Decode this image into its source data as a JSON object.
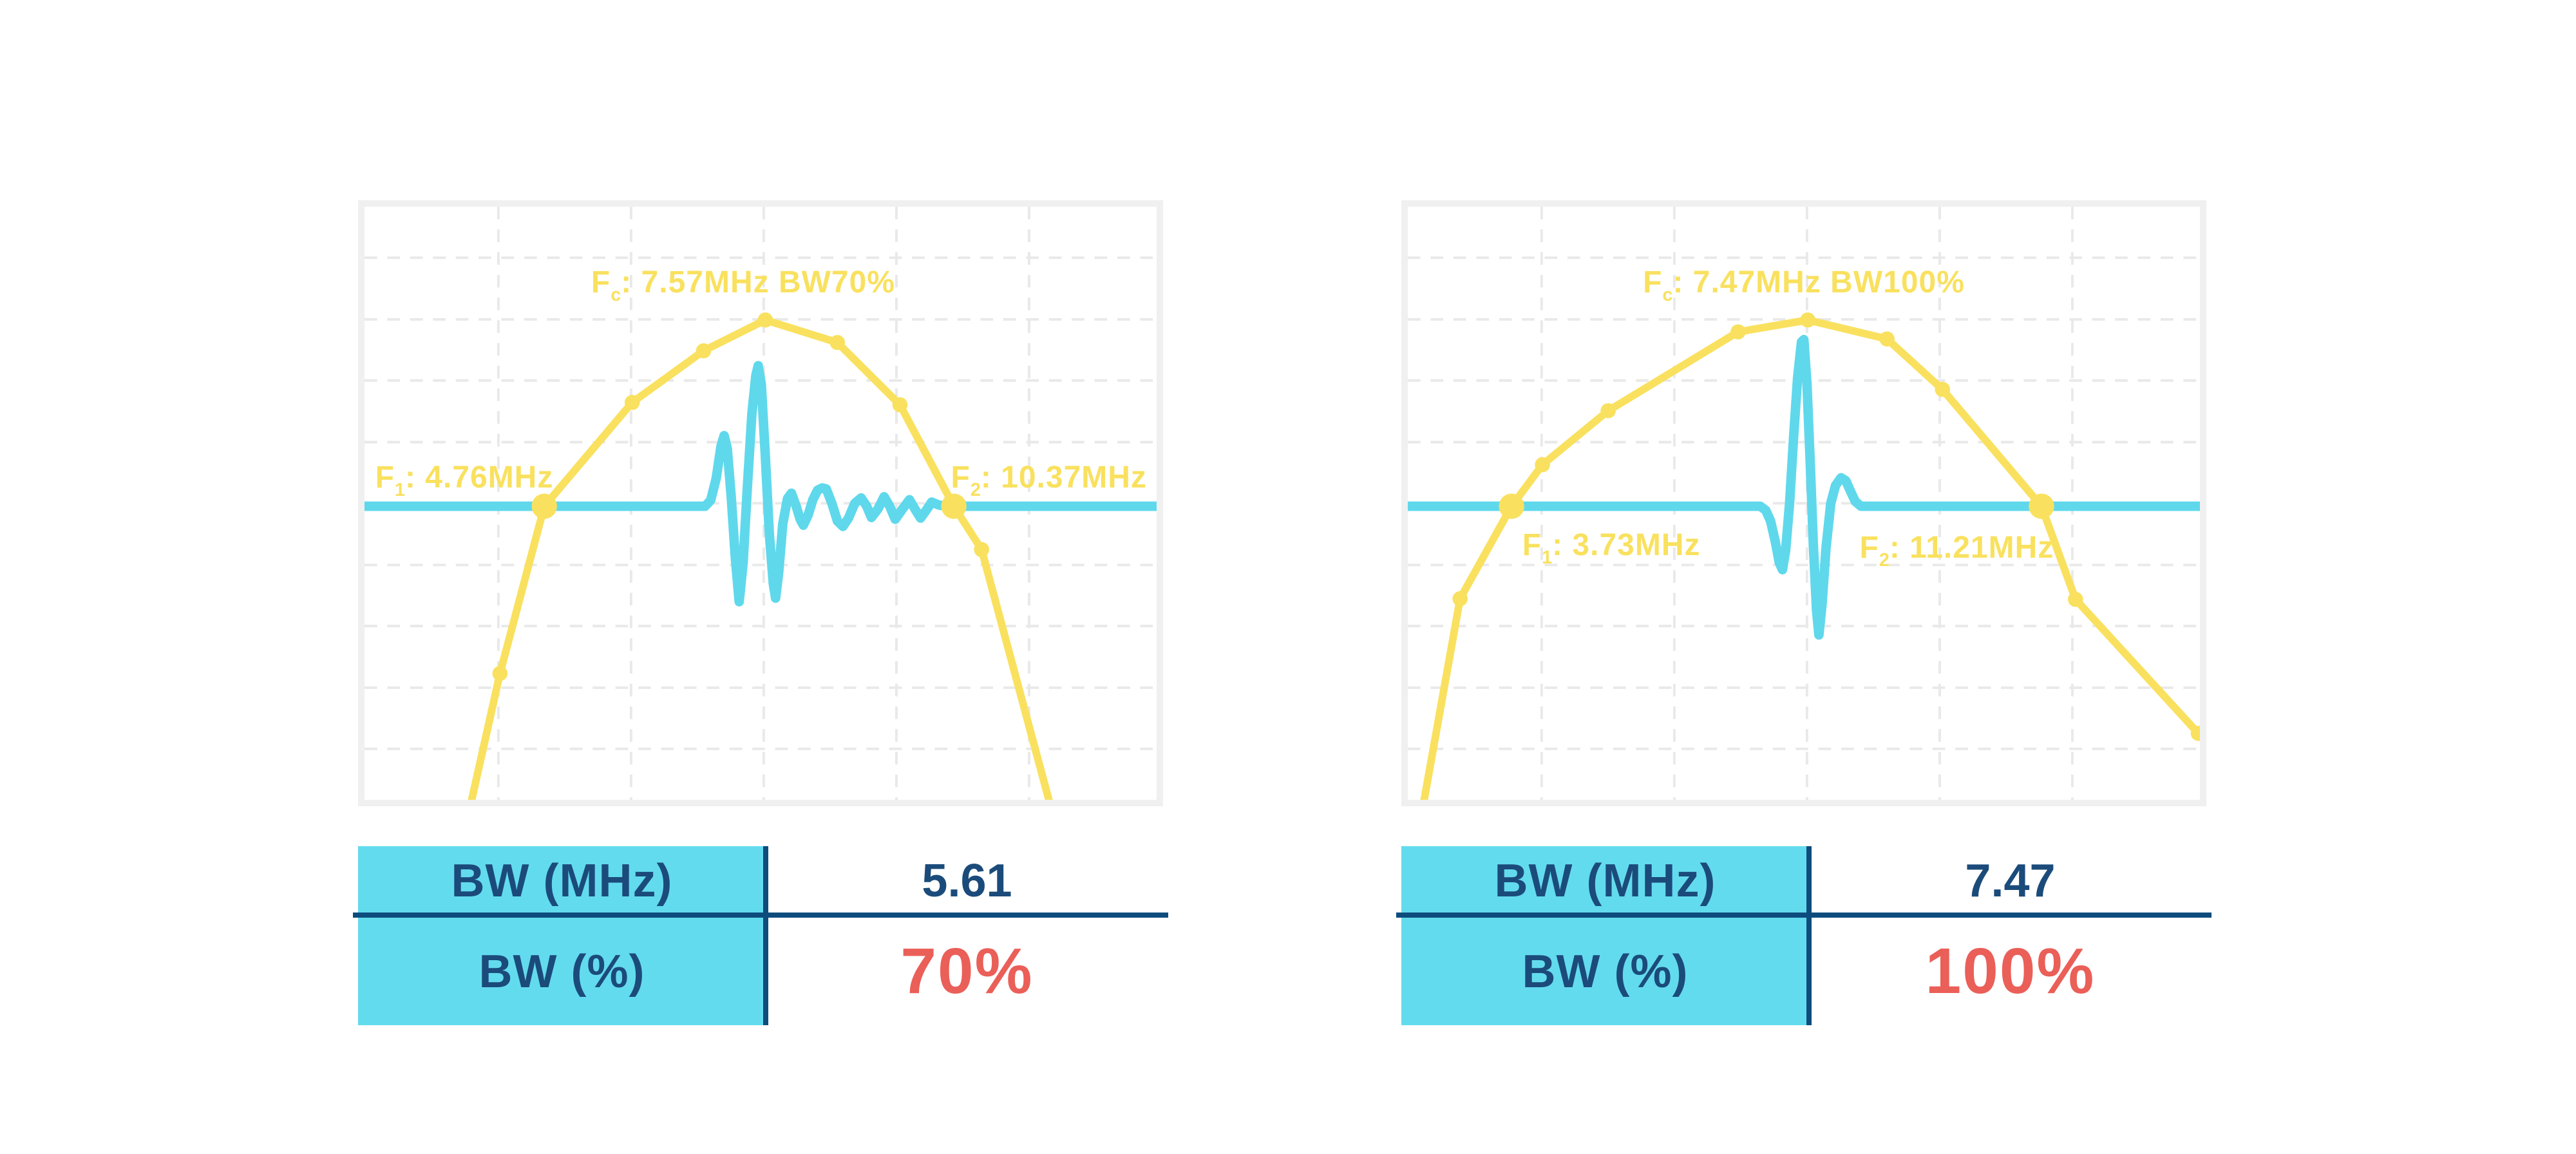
{
  "palette": {
    "yellow": "#F9E15F",
    "cyan": "#5FD8EC",
    "table_cyan": "#63DBEE",
    "navy": "#1B4B7A",
    "line_navy": "#0D4C7D",
    "red": "#EA5F58",
    "border": "#F0F0F0",
    "grid": "#E9E9E9",
    "pale": "#DCF0F6"
  },
  "chart_data": [
    {
      "type": "line",
      "name": "pulse-spectrum-bw70",
      "f_c_mhz": 7.57,
      "f1_mhz": 4.76,
      "f2_mhz": 10.37,
      "bw_mhz": 5.61,
      "bw_percent": 70,
      "legend": [
        "spectrum (yellow)",
        "pulse waveform (cyan)"
      ],
      "grid_v": [
        0.169,
        0.3365,
        0.504,
        0.6715,
        0.839
      ],
      "grid_h": [
        0.086,
        0.19,
        0.293,
        0.397,
        0.5,
        0.604,
        0.707,
        0.811,
        0.914
      ],
      "annotations": {
        "fc": {
          "pre": "F",
          "sub": "c",
          "post": ": 7.57MHz BW70%",
          "x": 0.478,
          "y": 0.132
        },
        "f1": {
          "pre": "F",
          "sub": "1",
          "post": ": 4.76MHz",
          "x": 0.126,
          "y": 0.461
        },
        "f2": {
          "pre": "F",
          "sub": "2",
          "post": ": 10.37MHz",
          "x": 0.864,
          "y": 0.461
        }
      },
      "spectrum": [
        [
          0.132,
          1.02,
          0
        ],
        [
          0.171,
          0.787,
          1
        ],
        [
          0.227,
          0.505,
          2
        ],
        [
          0.338,
          0.33,
          1
        ],
        [
          0.428,
          0.243,
          1
        ],
        [
          0.506,
          0.191,
          1
        ],
        [
          0.597,
          0.229,
          1
        ],
        [
          0.676,
          0.334,
          1
        ],
        [
          0.744,
          0.505,
          2
        ],
        [
          0.779,
          0.578,
          1
        ],
        [
          0.868,
          1.02,
          0
        ]
      ],
      "waveform": [
        [
          0,
          0.505
        ],
        [
          0.43,
          0.505
        ],
        [
          0.437,
          0.495
        ],
        [
          0.444,
          0.458
        ],
        [
          0.45,
          0.404
        ],
        [
          0.454,
          0.386
        ],
        [
          0.458,
          0.408
        ],
        [
          0.463,
          0.49
        ],
        [
          0.468,
          0.59
        ],
        [
          0.473,
          0.666
        ],
        [
          0.478,
          0.6
        ],
        [
          0.483,
          0.48
        ],
        [
          0.489,
          0.35
        ],
        [
          0.494,
          0.285
        ],
        [
          0.497,
          0.268
        ],
        [
          0.501,
          0.3
        ],
        [
          0.506,
          0.42
        ],
        [
          0.511,
          0.55
        ],
        [
          0.516,
          0.635
        ],
        [
          0.519,
          0.66
        ],
        [
          0.523,
          0.615
        ],
        [
          0.528,
          0.535
        ],
        [
          0.534,
          0.492
        ],
        [
          0.539,
          0.483
        ],
        [
          0.545,
          0.505
        ],
        [
          0.55,
          0.527
        ],
        [
          0.554,
          0.537
        ],
        [
          0.56,
          0.52
        ],
        [
          0.566,
          0.494
        ],
        [
          0.572,
          0.478
        ],
        [
          0.578,
          0.474
        ],
        [
          0.583,
          0.476
        ],
        [
          0.59,
          0.5
        ],
        [
          0.597,
          0.53
        ],
        [
          0.604,
          0.539
        ],
        [
          0.611,
          0.525
        ],
        [
          0.619,
          0.5
        ],
        [
          0.627,
          0.491
        ],
        [
          0.634,
          0.505
        ],
        [
          0.64,
          0.524
        ],
        [
          0.648,
          0.51
        ],
        [
          0.656,
          0.489
        ],
        [
          0.663,
          0.505
        ],
        [
          0.67,
          0.527
        ],
        [
          0.679,
          0.51
        ],
        [
          0.688,
          0.494
        ],
        [
          0.695,
          0.51
        ],
        [
          0.702,
          0.525
        ],
        [
          0.709,
          0.512
        ],
        [
          0.716,
          0.498
        ],
        [
          0.725,
          0.503
        ],
        [
          0.734,
          0.505
        ],
        [
          1,
          0.505
        ]
      ],
      "table": {
        "rows": [
          {
            "label": "BW (MHz)",
            "value": "5.61"
          },
          {
            "label": "BW (%)",
            "value": "70%"
          }
        ]
      }
    },
    {
      "type": "line",
      "name": "pulse-spectrum-bw100",
      "f_c_mhz": 7.47,
      "f1_mhz": 3.73,
      "f2_mhz": 11.21,
      "bw_mhz": 7.47,
      "bw_percent": 100,
      "legend": [
        "spectrum (yellow)",
        "pulse waveform (cyan)"
      ],
      "grid_v": [
        0.169,
        0.3365,
        0.504,
        0.6715,
        0.839
      ],
      "grid_h": [
        0.086,
        0.19,
        0.293,
        0.397,
        0.5,
        0.604,
        0.707,
        0.811,
        0.914
      ],
      "annotations": {
        "fc": {
          "pre": "F",
          "sub": "c",
          "post": ": 7.47MHz BW100%",
          "x": 0.5,
          "y": 0.132
        },
        "f1": {
          "pre": "F",
          "sub": "1",
          "post": ": 3.73MHz",
          "x": 0.257,
          "y": 0.575
        },
        "f2": {
          "pre": "F",
          "sub": "2",
          "post": ": 11.21MHz",
          "x": 0.693,
          "y": 0.58
        }
      },
      "spectrum": [
        [
          0.018,
          1.02,
          0
        ],
        [
          0.066,
          0.661,
          1
        ],
        [
          0.131,
          0.505,
          2
        ],
        [
          0.17,
          0.435,
          1
        ],
        [
          0.253,
          0.344,
          1
        ],
        [
          0.417,
          0.211,
          1
        ],
        [
          0.505,
          0.191,
          1
        ],
        [
          0.605,
          0.223,
          1
        ],
        [
          0.675,
          0.308,
          1
        ],
        [
          0.8,
          0.505,
          2
        ],
        [
          0.843,
          0.662,
          1
        ],
        [
          0.998,
          0.888,
          1
        ]
      ],
      "waveform": [
        [
          0,
          0.505
        ],
        [
          0.445,
          0.505
        ],
        [
          0.452,
          0.512
        ],
        [
          0.458,
          0.53
        ],
        [
          0.464,
          0.565
        ],
        [
          0.469,
          0.6
        ],
        [
          0.473,
          0.612
        ],
        [
          0.477,
          0.58
        ],
        [
          0.482,
          0.5
        ],
        [
          0.487,
          0.39
        ],
        [
          0.492,
          0.29
        ],
        [
          0.497,
          0.228
        ],
        [
          0.5,
          0.224
        ],
        [
          0.504,
          0.3
        ],
        [
          0.508,
          0.43
        ],
        [
          0.512,
          0.57
        ],
        [
          0.516,
          0.68
        ],
        [
          0.519,
          0.722
        ],
        [
          0.523,
          0.67
        ],
        [
          0.528,
          0.575
        ],
        [
          0.534,
          0.5
        ],
        [
          0.54,
          0.47
        ],
        [
          0.547,
          0.457
        ],
        [
          0.553,
          0.462
        ],
        [
          0.559,
          0.48
        ],
        [
          0.565,
          0.497
        ],
        [
          0.572,
          0.505
        ],
        [
          1,
          0.505
        ]
      ],
      "table": {
        "rows": [
          {
            "label": "BW (MHz)",
            "value": "7.47"
          },
          {
            "label": "BW (%)",
            "value": "100%"
          }
        ]
      }
    }
  ]
}
